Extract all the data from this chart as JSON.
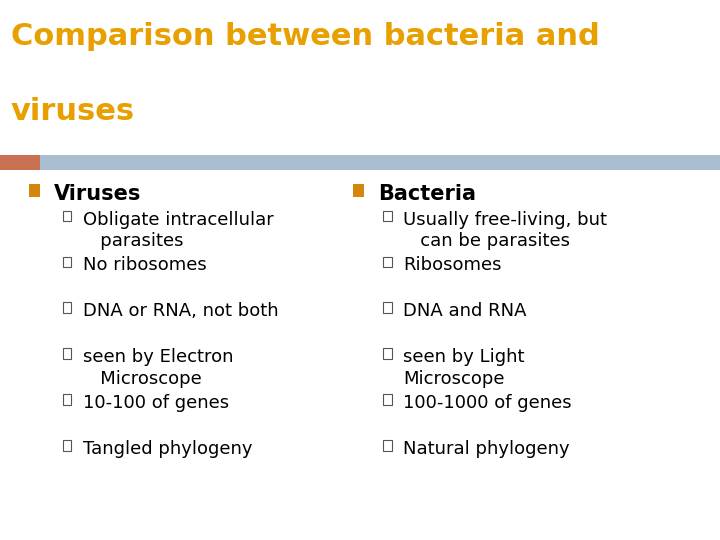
{
  "title_line1": "Comparison between bacteria and",
  "title_line2": "viruses",
  "title_color": "#E8A000",
  "background_color": "#FFFFFF",
  "header_bar_color": "#A8BED0",
  "header_bar_left_color": "#C87050",
  "col1_header": "Viruses",
  "col2_header": "Bacteria",
  "col1_items": [
    "Obligate intracellular\n   parasites",
    "No ribosomes",
    "DNA or RNA, not both",
    "seen by Electron\n   Microscope",
    "10-100 of genes",
    "Tangled phylogeny"
  ],
  "col2_items": [
    "Usually free-living, but\n   can be parasites",
    "Ribosomes",
    "DNA and RNA",
    "seen by Light\nMicroscope",
    "100-1000 of genes",
    "Natural phylogeny"
  ],
  "bullet_color_header": "#D4860A",
  "text_color": "#000000",
  "font_size_title": 22,
  "font_size_header": 15,
  "font_size_item": 13
}
